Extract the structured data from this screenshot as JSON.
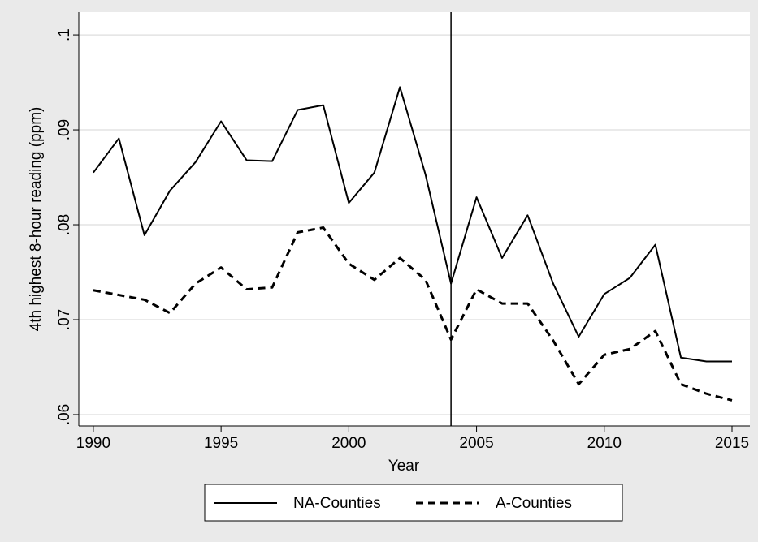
{
  "chart_data": {
    "type": "line",
    "x_label": "Year",
    "y_label": "4th highest 8-hour reading (ppm)",
    "x": [
      1990,
      1991,
      1992,
      1993,
      1994,
      1995,
      1996,
      1997,
      1998,
      1999,
      2000,
      2001,
      2002,
      2003,
      2004,
      2005,
      2006,
      2007,
      2008,
      2009,
      2010,
      2011,
      2012,
      2013,
      2014,
      2015
    ],
    "series": [
      {
        "name": "NA-Counties",
        "color": "#000000",
        "style": "solid",
        "values": [
          0.0855,
          0.0891,
          0.0789,
          0.0836,
          0.0866,
          0.0909,
          0.0868,
          0.0867,
          0.0921,
          0.0926,
          0.0823,
          0.0855,
          0.0945,
          0.0853,
          0.0738,
          0.0829,
          0.0765,
          0.081,
          0.0738,
          0.0682,
          0.0727,
          0.0744,
          0.0779,
          0.066,
          0.0656,
          0.0656
        ]
      },
      {
        "name": "A-Counties",
        "color": "#000000",
        "style": "dash",
        "values": [
          0.0731,
          0.0726,
          0.0721,
          0.0707,
          0.0738,
          0.0755,
          0.0732,
          0.0734,
          0.0792,
          0.0797,
          0.0759,
          0.0742,
          0.0765,
          0.0742,
          0.0679,
          0.0732,
          0.0717,
          0.0717,
          0.0678,
          0.0632,
          0.0663,
          0.0669,
          0.0688,
          0.0632,
          0.0622,
          0.0615
        ]
      }
    ],
    "xline": 2004,
    "xlim": [
      1989.43,
      2015.7
    ],
    "ylim": [
      0.0588,
      0.1024
    ],
    "xticks": [
      1990,
      1995,
      2000,
      2005,
      2010,
      2015
    ],
    "yticks": [
      {
        "value": 0.06,
        "label": ".06"
      },
      {
        "value": 0.07,
        "label": ".07"
      },
      {
        "value": 0.08,
        "label": ".08"
      },
      {
        "value": 0.09,
        "label": ".09"
      },
      {
        "value": 0.1,
        "label": ".1"
      }
    ],
    "grid": true,
    "legend": "bottom"
  }
}
